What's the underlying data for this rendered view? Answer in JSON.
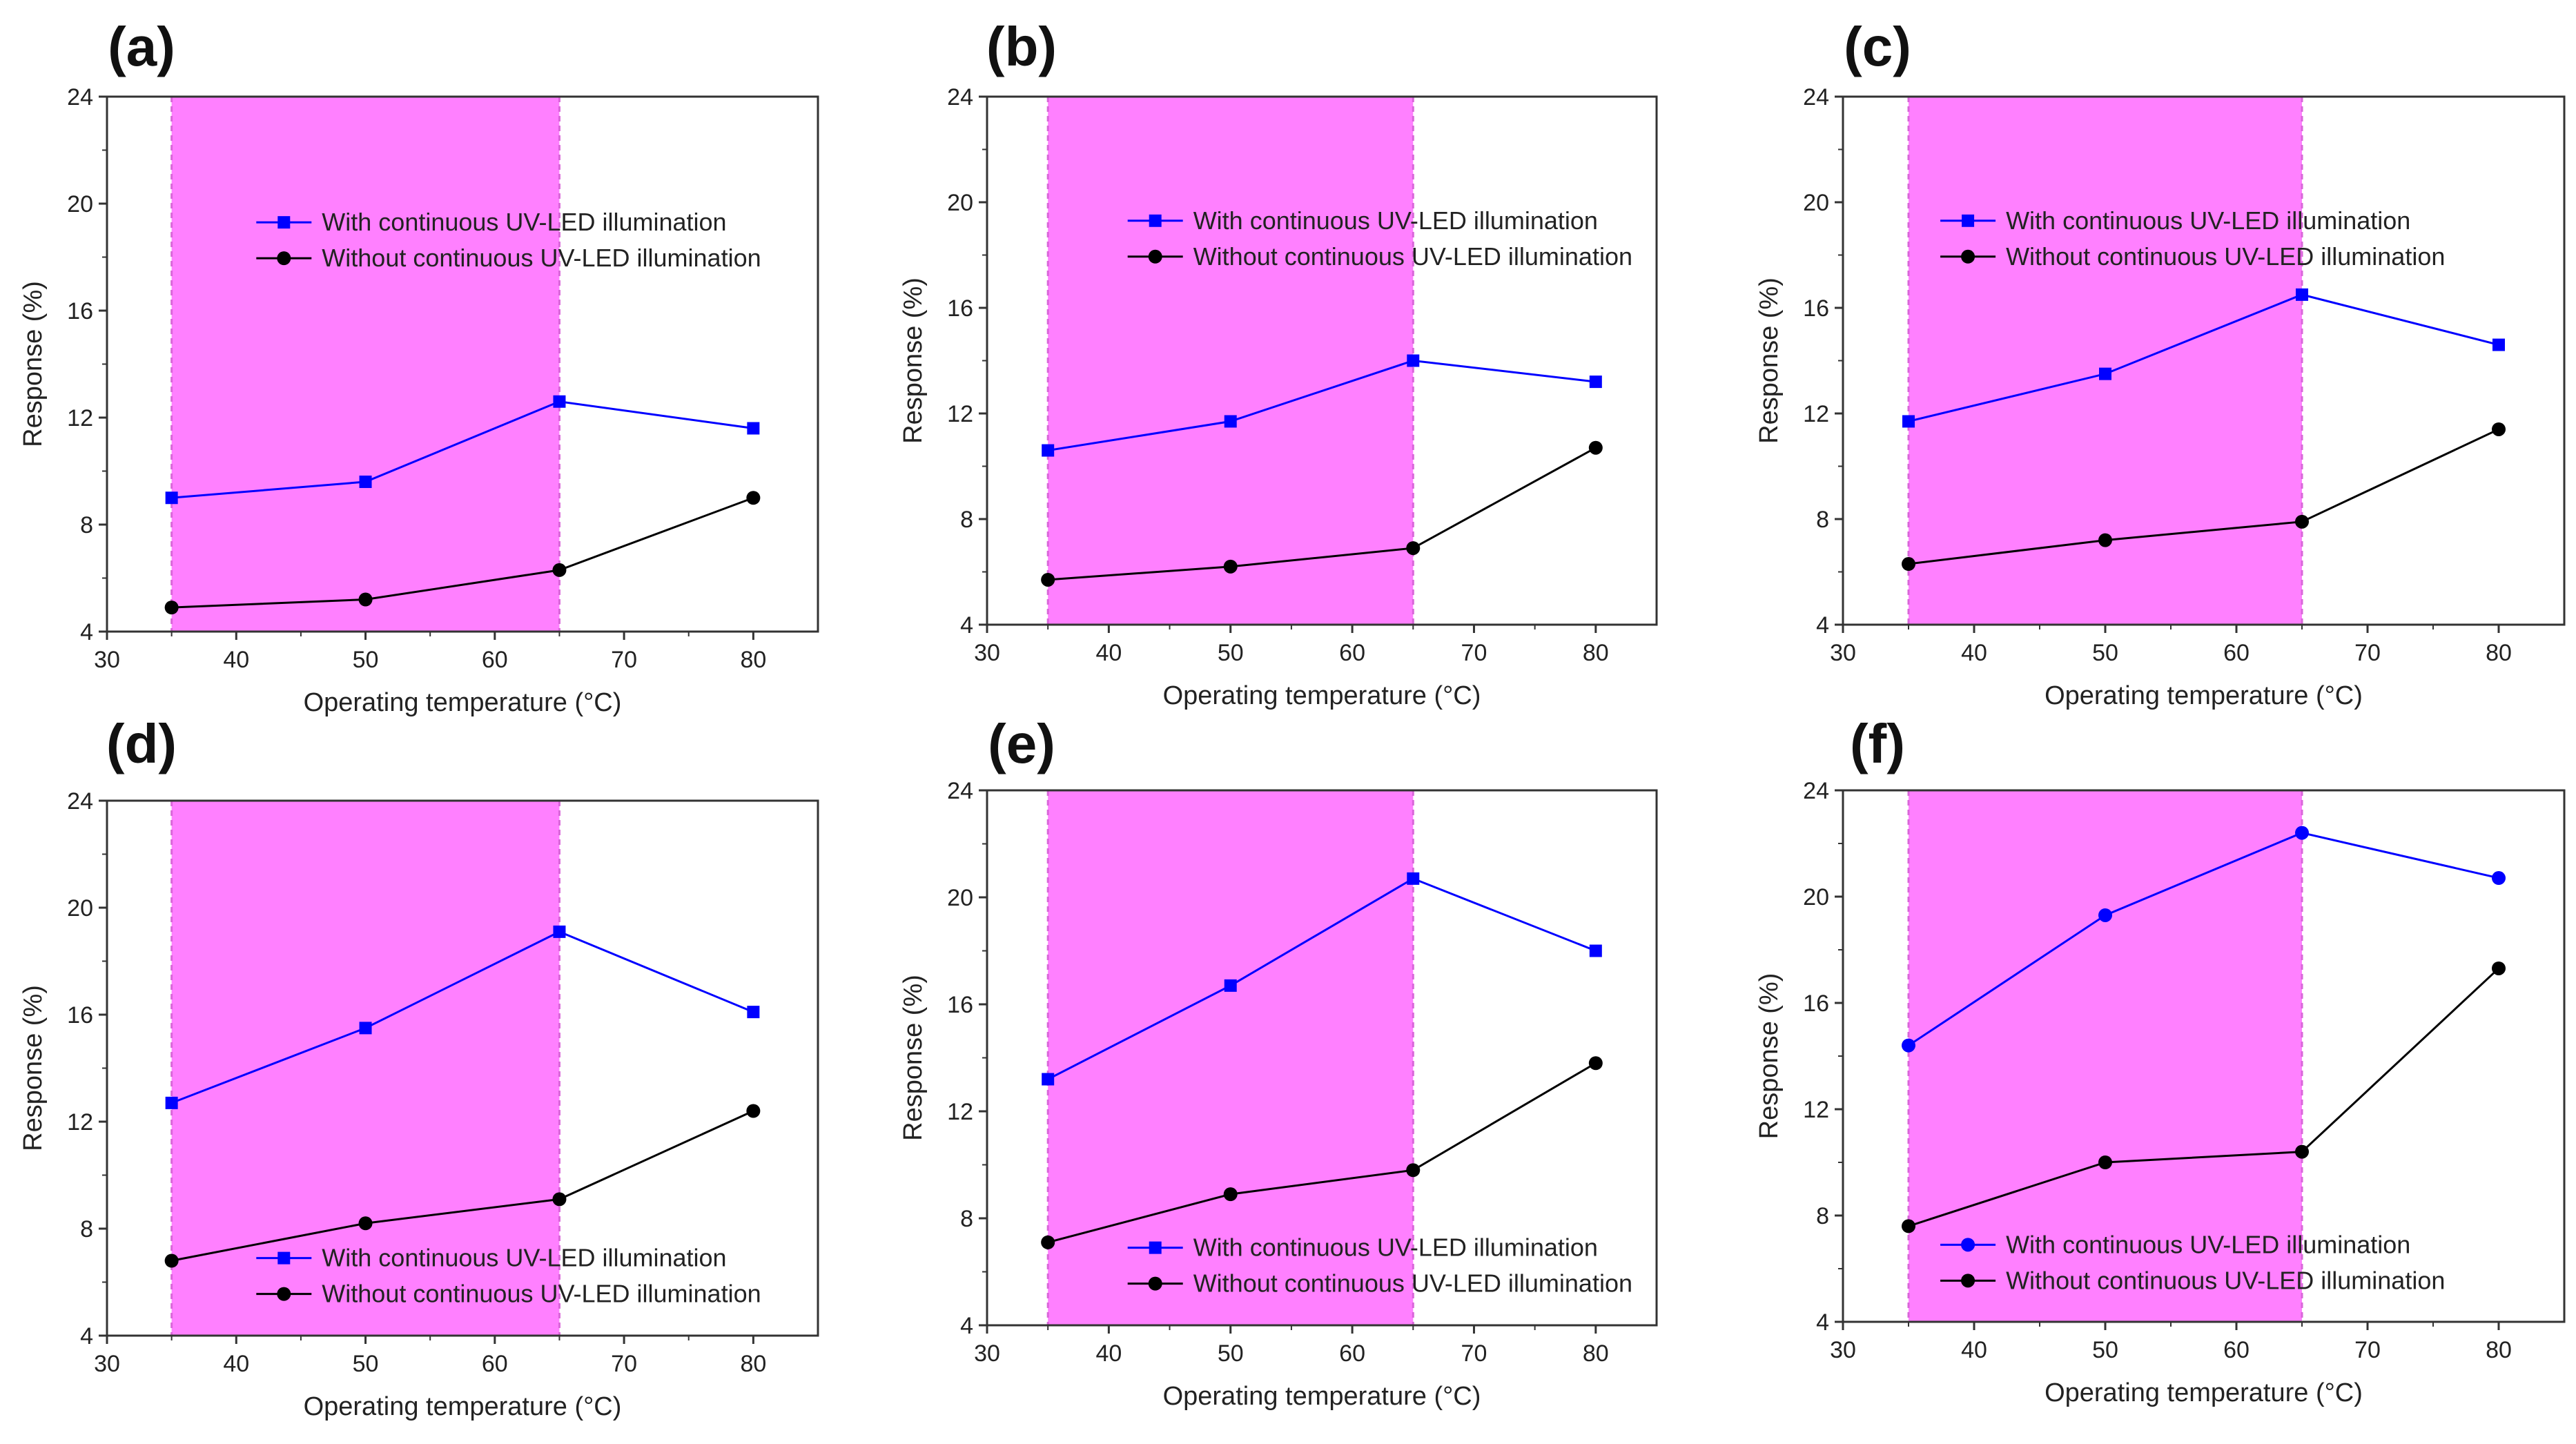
{
  "figure": {
    "colors": {
      "with_series": "#0000ff",
      "without_series": "#000000",
      "highlight": "#ff80ff",
      "highlight_border": "#d966d9",
      "axis": "#333333"
    }
  },
  "chart_data": [
    {
      "panel": "(a)",
      "type": "line",
      "x": [
        35,
        50,
        65,
        80
      ],
      "series": [
        {
          "name": "With continuous UV-LED illumination",
          "values": [
            9.0,
            9.6,
            12.6,
            11.6
          ],
          "color": "#0000ff",
          "marker": "square"
        },
        {
          "name": "Without continuous UV-LED illumination",
          "values": [
            4.9,
            5.2,
            6.3,
            9.0
          ],
          "color": "#000000",
          "marker": "circle"
        }
      ],
      "xlabel": "Operating temperature (°C)",
      "ylabel": "Response (%)",
      "xlim": [
        30,
        85
      ],
      "ylim": [
        4,
        24
      ],
      "xticks": [
        30,
        40,
        50,
        60,
        70,
        80
      ],
      "yticks": [
        4,
        8,
        12,
        16,
        20,
        24
      ],
      "highlight_range": [
        35,
        65
      ],
      "legend_position": "top-right"
    },
    {
      "panel": "(b)",
      "type": "line",
      "x": [
        35,
        50,
        65,
        80
      ],
      "series": [
        {
          "name": "With continuous UV-LED illumination",
          "values": [
            10.6,
            11.7,
            14.0,
            13.2
          ],
          "color": "#0000ff",
          "marker": "square"
        },
        {
          "name": "Without continuous UV-LED illumination",
          "values": [
            5.7,
            6.2,
            6.9,
            10.7
          ],
          "color": "#000000",
          "marker": "circle"
        }
      ],
      "xlabel": "Operating temperature (°C)",
      "ylabel": "Response (%)",
      "xlim": [
        30,
        85
      ],
      "ylim": [
        4,
        24
      ],
      "xticks": [
        30,
        40,
        50,
        60,
        70,
        80
      ],
      "yticks": [
        4,
        8,
        12,
        16,
        20,
        24
      ],
      "highlight_range": [
        35,
        65
      ],
      "legend_position": "top-right"
    },
    {
      "panel": "(c)",
      "type": "line",
      "x": [
        35,
        50,
        65,
        80
      ],
      "series": [
        {
          "name": "With continuous UV-LED illumination",
          "values": [
            11.7,
            13.5,
            16.5,
            14.6
          ],
          "color": "#0000ff",
          "marker": "square"
        },
        {
          "name": "Without continuous UV-LED illumination",
          "values": [
            6.3,
            7.2,
            7.9,
            11.4
          ],
          "color": "#000000",
          "marker": "circle"
        }
      ],
      "xlabel": "Operating temperature (°C)",
      "ylabel": "Response (%)",
      "xlim": [
        30,
        85
      ],
      "ylim": [
        4,
        24
      ],
      "xticks": [
        30,
        40,
        50,
        60,
        70,
        80
      ],
      "yticks": [
        4,
        8,
        12,
        16,
        20,
        24
      ],
      "highlight_range": [
        35,
        65
      ],
      "legend_position": "top-right"
    },
    {
      "panel": "(d)",
      "type": "line",
      "x": [
        35,
        50,
        65,
        80
      ],
      "series": [
        {
          "name": "With continuous UV-LED illumination",
          "values": [
            12.7,
            15.5,
            19.1,
            16.1
          ],
          "color": "#0000ff",
          "marker": "square"
        },
        {
          "name": "Without continuous UV-LED illumination",
          "values": [
            6.8,
            8.2,
            9.1,
            12.4
          ],
          "color": "#000000",
          "marker": "circle"
        }
      ],
      "xlabel": "Operating temperature (°C)",
      "ylabel": "Response (%)",
      "xlim": [
        30,
        85
      ],
      "ylim": [
        4,
        24
      ],
      "xticks": [
        30,
        40,
        50,
        60,
        70,
        80
      ],
      "yticks": [
        4,
        8,
        12,
        16,
        20,
        24
      ],
      "highlight_range": [
        35,
        65
      ],
      "legend_position": "bottom-right"
    },
    {
      "panel": "(e)",
      "type": "line",
      "x": [
        35,
        50,
        65,
        80
      ],
      "series": [
        {
          "name": "With continuous UV-LED illumination",
          "values": [
            13.2,
            16.7,
            20.7,
            18.0
          ],
          "color": "#0000ff",
          "marker": "square"
        },
        {
          "name": "Without continuous UV-LED illumination",
          "values": [
            7.1,
            8.9,
            9.8,
            13.8
          ],
          "color": "#000000",
          "marker": "circle"
        }
      ],
      "xlabel": "Operating temperature (°C)",
      "ylabel": "Response (%)",
      "xlim": [
        30,
        85
      ],
      "ylim": [
        4,
        24
      ],
      "xticks": [
        30,
        40,
        50,
        60,
        70,
        80
      ],
      "yticks": [
        4,
        8,
        12,
        16,
        20,
        24
      ],
      "highlight_range": [
        35,
        65
      ],
      "legend_position": "bottom-right"
    },
    {
      "panel": "(f)",
      "type": "line",
      "x": [
        35,
        50,
        65,
        80
      ],
      "series": [
        {
          "name": "With continuous UV-LED illumination",
          "values": [
            14.4,
            19.3,
            22.4,
            20.7
          ],
          "color": "#0000ff",
          "marker": "circle"
        },
        {
          "name": "Without continuous UV-LED illumination",
          "values": [
            7.6,
            10.0,
            10.4,
            17.3
          ],
          "color": "#000000",
          "marker": "circle"
        }
      ],
      "xlabel": "Operating temperature (°C)",
      "ylabel": "Response (%)",
      "xlim": [
        30,
        85
      ],
      "ylim": [
        4,
        24
      ],
      "xticks": [
        30,
        40,
        50,
        60,
        70,
        80
      ],
      "yticks": [
        4,
        8,
        12,
        16,
        20,
        24
      ],
      "highlight_range": [
        35,
        65
      ],
      "legend_position": "bottom-right"
    }
  ]
}
